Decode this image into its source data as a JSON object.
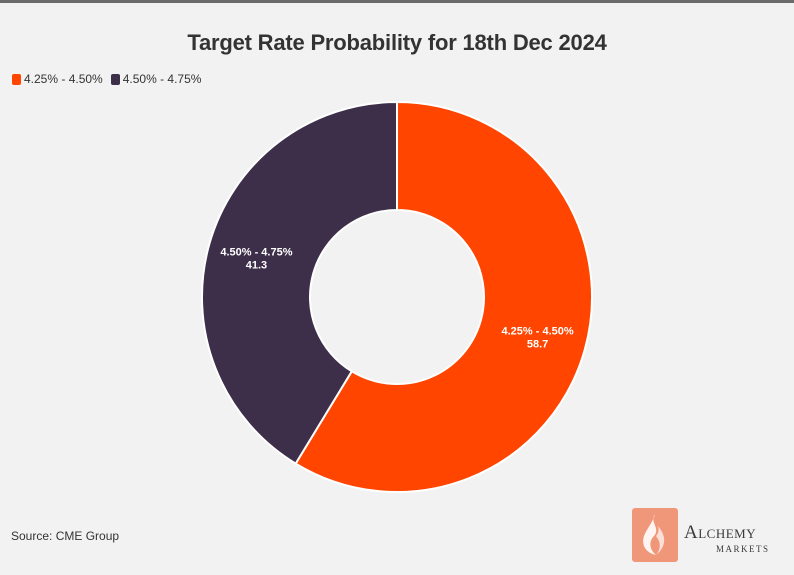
{
  "chart_data": {
    "type": "pie",
    "style": "donut",
    "title": "Target Rate Probability for 18th Dec 2024",
    "categories": [
      "4.25% - 4.50%",
      "4.50% - 4.75%"
    ],
    "values": [
      58.7,
      41.3
    ],
    "colors": [
      "#ff4500",
      "#3d2f4a"
    ],
    "legend_placement": "top-left",
    "slice_labels": [
      {
        "name": "4.25% - 4.50%",
        "value": "58.7"
      },
      {
        "name": "4.50% - 4.75%",
        "value": "41.3"
      }
    ]
  },
  "footer": {
    "source": "Source: CME Group"
  },
  "logo": {
    "word": "Alchemy",
    "sub": "MARKETS",
    "icon": "alchemy-flame-icon",
    "color": "#f0977a"
  }
}
